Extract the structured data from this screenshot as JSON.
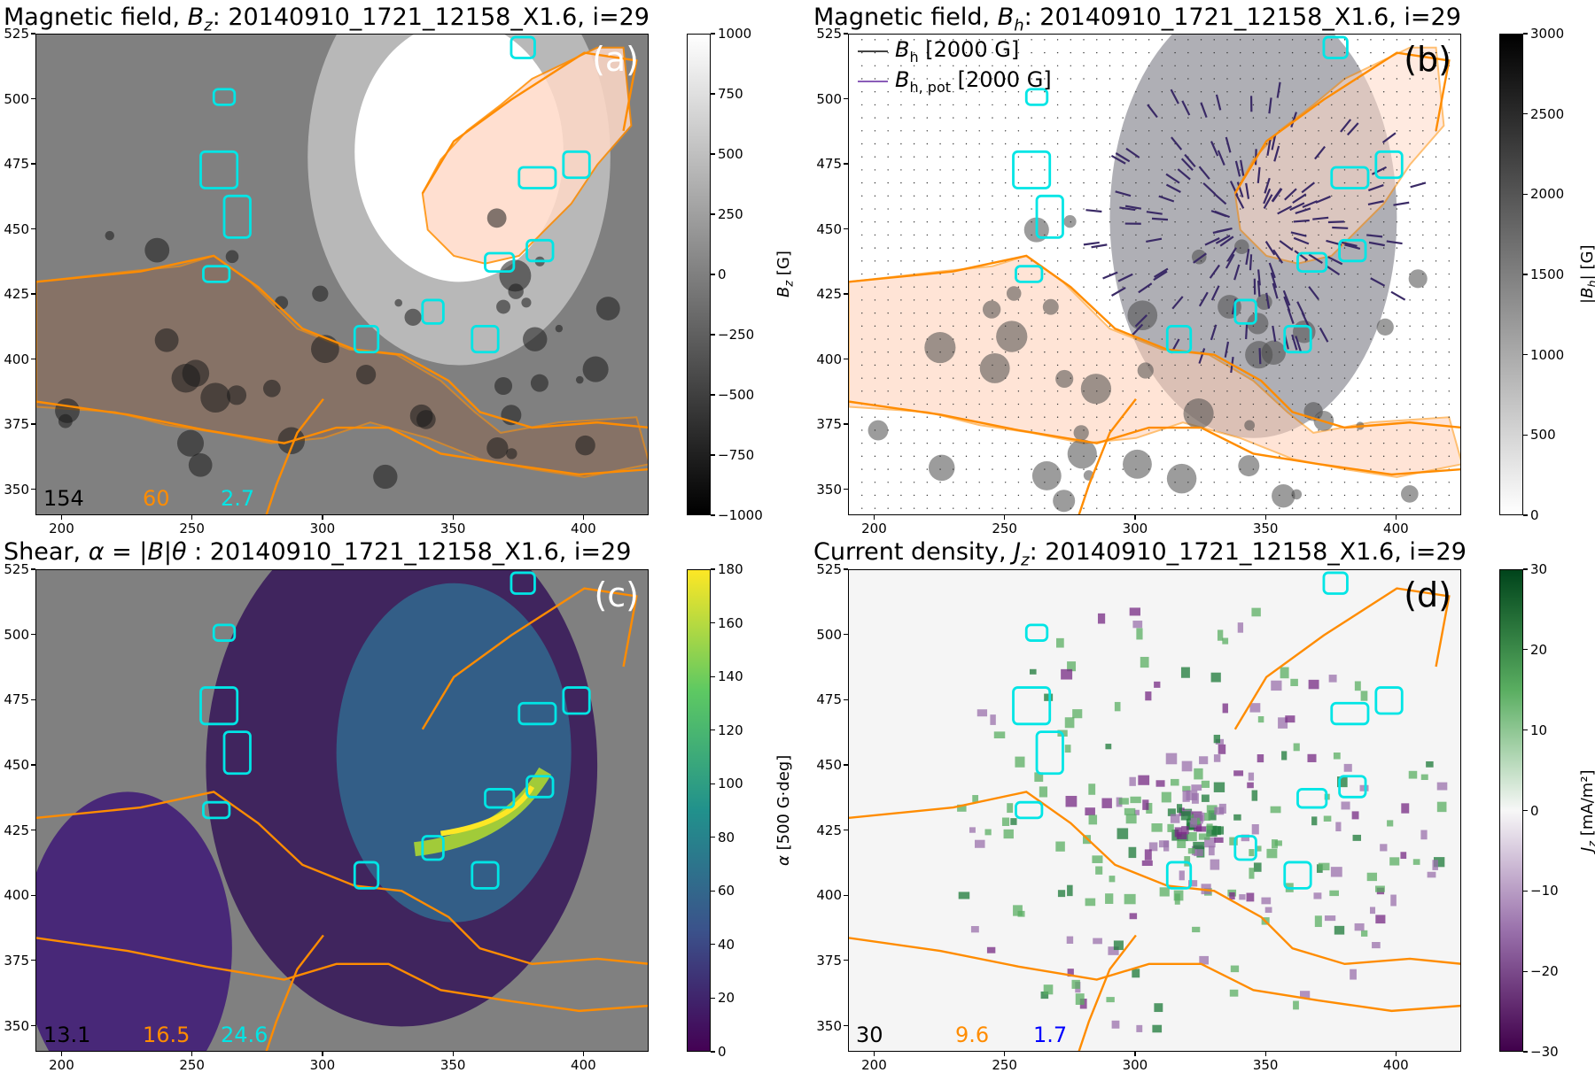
{
  "chart_data": [
    {
      "type": "heatmap",
      "panel_letter": "(a)",
      "title": "Magnetic field, B_z: 20140910_1721_12158_X1.6, i=29",
      "title_prefix": "Magnetic field, ",
      "title_symbol": "B",
      "title_sub": "z",
      "title_suffix": ": 20140910_1721_12158_X1.6, i=29",
      "xlim": [
        190,
        425
      ],
      "ylim": [
        340,
        525
      ],
      "xticks": [
        "200",
        "250",
        "300",
        "350",
        "400"
      ],
      "yticks": [
        "350",
        "375",
        "400",
        "425",
        "450",
        "475",
        "500",
        "525"
      ],
      "colorbar": {
        "label": "B_z [G]",
        "label_symbol": "B",
        "label_sub": "z",
        "label_suffix": " [G]",
        "range": [
          -1000,
          1000
        ],
        "ticks": [
          "1000",
          "750",
          "500",
          "250",
          "0",
          "−250",
          "−500",
          "−750",
          "−1000"
        ],
        "colors": [
          "#000000",
          "#ffffff"
        ]
      },
      "corner_values": [
        {
          "text": "154",
          "color": "#000000"
        },
        {
          "text": "60",
          "color": "#ff8c00"
        },
        {
          "text": "2.7",
          "color": "#00e5e5"
        }
      ]
    },
    {
      "type": "heatmap",
      "panel_letter": "(b)",
      "title": "Magnetic field, B_h: 20140910_1721_12158_X1.6, i=29",
      "title_prefix": "Magnetic field, ",
      "title_symbol": "B",
      "title_sub": "h",
      "title_suffix": ": 20140910_1721_12158_X1.6, i=29",
      "xlim": [
        190,
        425
      ],
      "ylim": [
        340,
        525
      ],
      "xticks": [
        "200",
        "250",
        "300",
        "350",
        "400"
      ],
      "yticks": [
        "350",
        "375",
        "400",
        "425",
        "450",
        "475",
        "500",
        "525"
      ],
      "colorbar": {
        "label": "|B_h| [G]",
        "label_prefix": "|",
        "label_symbol": "B",
        "label_sub": "h",
        "label_suffix": "| [G]",
        "range": [
          0,
          3000
        ],
        "ticks": [
          "3000",
          "2500",
          "2000",
          "1500",
          "1000",
          "500",
          "0"
        ],
        "colors": [
          "#ffffff",
          "#000000"
        ]
      },
      "legend": [
        {
          "symbol": "B",
          "sub": "h",
          "text": " [2000 G]",
          "color": "#444444"
        },
        {
          "symbol": "B",
          "sub": "h, pot",
          "text": " [2000 G]",
          "color": "#8a5cb8"
        }
      ]
    },
    {
      "type": "heatmap",
      "panel_letter": "(c)",
      "title": "Shear, α = |B|θ : 20140910_1721_12158_X1.6, i=29",
      "title_prefix": "Shear, ",
      "title_symbol": "α = |B|θ",
      "title_sub": "",
      "title_suffix": " : 20140910_1721_12158_X1.6, i=29",
      "xlim": [
        190,
        425
      ],
      "ylim": [
        340,
        525
      ],
      "xticks": [
        "200",
        "250",
        "300",
        "350",
        "400"
      ],
      "yticks": [
        "350",
        "375",
        "400",
        "425",
        "450",
        "475",
        "500",
        "525"
      ],
      "colorbar": {
        "label": "α [500 G·deg]",
        "label_symbol": "α",
        "label_sub": "",
        "label_suffix": " [500 G·deg]",
        "range": [
          0,
          180
        ],
        "ticks": [
          "180",
          "160",
          "140",
          "120",
          "100",
          "80",
          "60",
          "40",
          "20",
          "0"
        ],
        "colors": [
          "#440154",
          "#3b528b",
          "#21918c",
          "#5ec962",
          "#fde725"
        ]
      },
      "corner_values": [
        {
          "text": "13.1",
          "color": "#000000"
        },
        {
          "text": "16.5",
          "color": "#ff8c00"
        },
        {
          "text": "24.6",
          "color": "#00e5e5"
        }
      ]
    },
    {
      "type": "heatmap",
      "panel_letter": "(d)",
      "title": "Current density, J_z: 20140910_1721_12158_X1.6, i=29",
      "title_prefix": "Current density, ",
      "title_symbol": "J",
      "title_sub": "z",
      "title_suffix": ": 20140910_1721_12158_X1.6, i=29",
      "xlim": [
        190,
        425
      ],
      "ylim": [
        340,
        525
      ],
      "xticks": [
        "200",
        "250",
        "300",
        "350",
        "400"
      ],
      "yticks": [
        "350",
        "375",
        "400",
        "425",
        "450",
        "475",
        "500",
        "525"
      ],
      "colorbar": {
        "label": "J_z [mA/m²]",
        "label_symbol": "J",
        "label_sub": "z",
        "label_suffix": " [mA/m²]",
        "range": [
          -30,
          30
        ],
        "ticks": [
          "30",
          "20",
          "10",
          "0",
          "−10",
          "−20",
          "−30"
        ],
        "colors": [
          "#40004b",
          "#9970ab",
          "#f7f7f7",
          "#5aae61",
          "#00441b"
        ]
      },
      "corner_values": [
        {
          "text": "30",
          "color": "#000000"
        },
        {
          "text": "9.6",
          "color": "#ff8c00"
        },
        {
          "text": "1.7",
          "color": "#0000ff"
        }
      ]
    }
  ]
}
